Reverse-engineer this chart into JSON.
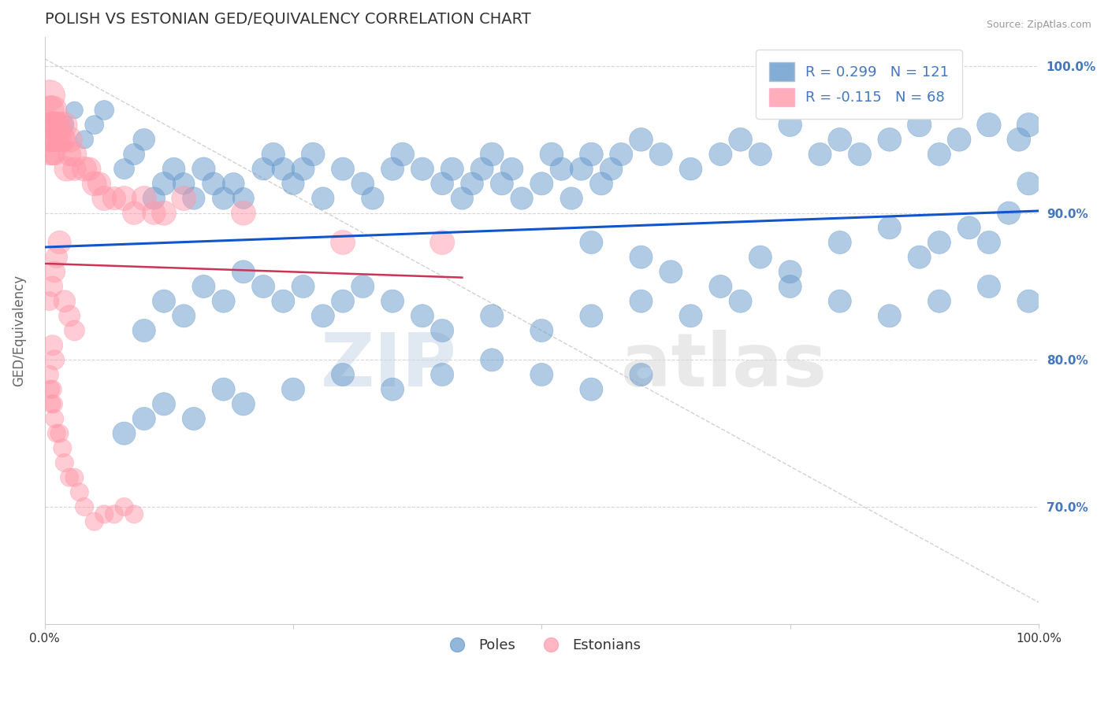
{
  "title": "POLISH VS ESTONIAN GED/EQUIVALENCY CORRELATION CHART",
  "source": "Source: ZipAtlas.com",
  "ylabel": "GED/Equivalency",
  "xlim": [
    0.0,
    1.0
  ],
  "ylim": [
    0.62,
    1.02
  ],
  "yticks": [
    0.7,
    0.8,
    0.9,
    1.0
  ],
  "ytick_labels": [
    "70.0%",
    "80.0%",
    "90.0%",
    "100.0%"
  ],
  "legend_blue_label": "R = 0.299   N = 121",
  "legend_pink_label": "R = -0.115   N = 68",
  "legend_poles": "Poles",
  "legend_estonians": "Estonians",
  "blue_color": "#6699CC",
  "pink_color": "#FF99AA",
  "trend_blue": "#1155CC",
  "trend_pink": "#CC3355",
  "blue_scatter_x": [
    0.02,
    0.03,
    0.04,
    0.05,
    0.06,
    0.08,
    0.09,
    0.1,
    0.11,
    0.12,
    0.13,
    0.14,
    0.15,
    0.16,
    0.17,
    0.18,
    0.19,
    0.2,
    0.22,
    0.23,
    0.24,
    0.25,
    0.26,
    0.27,
    0.28,
    0.3,
    0.32,
    0.33,
    0.35,
    0.36,
    0.38,
    0.4,
    0.41,
    0.42,
    0.43,
    0.44,
    0.45,
    0.46,
    0.47,
    0.48,
    0.5,
    0.51,
    0.52,
    0.53,
    0.54,
    0.55,
    0.56,
    0.57,
    0.58,
    0.6,
    0.62,
    0.65,
    0.68,
    0.7,
    0.72,
    0.75,
    0.78,
    0.8,
    0.82,
    0.85,
    0.88,
    0.9,
    0.92,
    0.95,
    0.98,
    0.99,
    0.55,
    0.6,
    0.63,
    0.68,
    0.72,
    0.75,
    0.8,
    0.85,
    0.88,
    0.9,
    0.93,
    0.95,
    0.97,
    0.99,
    0.1,
    0.12,
    0.14,
    0.16,
    0.18,
    0.2,
    0.22,
    0.24,
    0.26,
    0.28,
    0.3,
    0.32,
    0.35,
    0.38,
    0.4,
    0.45,
    0.5,
    0.55,
    0.6,
    0.65,
    0.7,
    0.75,
    0.8,
    0.85,
    0.9,
    0.95,
    0.99,
    0.08,
    0.1,
    0.12,
    0.15,
    0.18,
    0.2,
    0.25,
    0.3,
    0.35,
    0.4,
    0.45,
    0.5,
    0.55,
    0.6
  ],
  "blue_scatter_y": [
    0.96,
    0.97,
    0.95,
    0.96,
    0.97,
    0.93,
    0.94,
    0.95,
    0.91,
    0.92,
    0.93,
    0.92,
    0.91,
    0.93,
    0.92,
    0.91,
    0.92,
    0.91,
    0.93,
    0.94,
    0.93,
    0.92,
    0.93,
    0.94,
    0.91,
    0.93,
    0.92,
    0.91,
    0.93,
    0.94,
    0.93,
    0.92,
    0.93,
    0.91,
    0.92,
    0.93,
    0.94,
    0.92,
    0.93,
    0.91,
    0.92,
    0.94,
    0.93,
    0.91,
    0.93,
    0.94,
    0.92,
    0.93,
    0.94,
    0.95,
    0.94,
    0.93,
    0.94,
    0.95,
    0.94,
    0.96,
    0.94,
    0.95,
    0.94,
    0.95,
    0.96,
    0.94,
    0.95,
    0.96,
    0.95,
    0.96,
    0.88,
    0.87,
    0.86,
    0.85,
    0.87,
    0.86,
    0.88,
    0.89,
    0.87,
    0.88,
    0.89,
    0.88,
    0.9,
    0.92,
    0.82,
    0.84,
    0.83,
    0.85,
    0.84,
    0.86,
    0.85,
    0.84,
    0.85,
    0.83,
    0.84,
    0.85,
    0.84,
    0.83,
    0.82,
    0.83,
    0.82,
    0.83,
    0.84,
    0.83,
    0.84,
    0.85,
    0.84,
    0.83,
    0.84,
    0.85,
    0.84,
    0.75,
    0.76,
    0.77,
    0.76,
    0.78,
    0.77,
    0.78,
    0.79,
    0.78,
    0.79,
    0.8,
    0.79,
    0.78,
    0.79
  ],
  "blue_scatter_s": [
    30,
    25,
    28,
    30,
    32,
    35,
    38,
    40,
    42,
    45,
    43,
    40,
    42,
    45,
    43,
    42,
    40,
    38,
    42,
    45,
    43,
    42,
    44,
    46,
    42,
    44,
    43,
    42,
    44,
    46,
    44,
    43,
    44,
    42,
    43,
    44,
    46,
    44,
    43,
    42,
    44,
    46,
    44,
    42,
    44,
    46,
    44,
    43,
    44,
    46,
    44,
    43,
    44,
    46,
    44,
    46,
    44,
    46,
    44,
    46,
    48,
    44,
    46,
    48,
    46,
    48,
    44,
    44,
    44,
    44,
    44,
    44,
    44,
    44,
    44,
    44,
    44,
    44,
    44,
    44,
    44,
    44,
    44,
    44,
    44,
    44,
    44,
    44,
    44,
    44,
    44,
    44,
    44,
    44,
    44,
    44,
    44,
    44,
    44,
    44,
    44,
    44,
    44,
    44,
    44,
    44,
    44,
    44,
    44,
    44,
    44,
    44,
    44,
    44,
    44,
    44,
    44,
    44,
    44,
    44,
    44
  ],
  "pink_scatter_x": [
    0.005,
    0.005,
    0.005,
    0.005,
    0.005,
    0.008,
    0.008,
    0.008,
    0.008,
    0.01,
    0.01,
    0.01,
    0.012,
    0.012,
    0.015,
    0.015,
    0.018,
    0.02,
    0.02,
    0.022,
    0.025,
    0.025,
    0.03,
    0.03,
    0.04,
    0.045,
    0.05,
    0.055,
    0.06,
    0.07,
    0.08,
    0.09,
    0.1,
    0.11,
    0.12,
    0.14,
    0.2,
    0.3,
    0.4,
    0.015,
    0.012,
    0.01,
    0.008,
    0.005,
    0.02,
    0.025,
    0.03,
    0.008,
    0.01,
    0.005,
    0.006,
    0.007,
    0.008,
    0.009,
    0.01,
    0.012,
    0.015,
    0.018,
    0.02,
    0.025,
    0.03,
    0.035,
    0.04,
    0.05,
    0.06,
    0.07,
    0.08,
    0.09
  ],
  "pink_scatter_y": [
    0.98,
    0.97,
    0.96,
    0.95,
    0.94,
    0.97,
    0.96,
    0.95,
    0.94,
    0.96,
    0.95,
    0.94,
    0.96,
    0.95,
    0.96,
    0.95,
    0.95,
    0.96,
    0.95,
    0.93,
    0.95,
    0.94,
    0.94,
    0.93,
    0.93,
    0.93,
    0.92,
    0.92,
    0.91,
    0.91,
    0.91,
    0.9,
    0.91,
    0.9,
    0.9,
    0.91,
    0.9,
    0.88,
    0.88,
    0.88,
    0.87,
    0.86,
    0.85,
    0.84,
    0.84,
    0.83,
    0.82,
    0.81,
    0.8,
    0.79,
    0.78,
    0.77,
    0.78,
    0.77,
    0.76,
    0.75,
    0.75,
    0.74,
    0.73,
    0.72,
    0.72,
    0.71,
    0.7,
    0.69,
    0.695,
    0.695,
    0.7,
    0.695
  ],
  "pink_scatter_s": [
    80,
    70,
    60,
    50,
    40,
    70,
    60,
    50,
    40,
    60,
    50,
    40,
    55,
    45,
    55,
    45,
    50,
    55,
    45,
    50,
    55,
    45,
    50,
    45,
    50,
    45,
    50,
    45,
    50,
    45,
    50,
    45,
    50,
    45,
    50,
    50,
    50,
    50,
    50,
    45,
    40,
    38,
    35,
    30,
    40,
    38,
    35,
    35,
    33,
    28,
    28,
    28,
    28,
    28,
    28,
    28,
    28,
    28,
    28,
    28,
    28,
    28,
    28,
    28,
    28,
    28,
    28,
    28
  ],
  "watermark_zip": "ZIP",
  "watermark_atlas": "atlas",
  "background_color": "#FFFFFF",
  "grid_color": "#CCCCCC",
  "title_color": "#333333",
  "axis_label_color": "#666666",
  "right_axis_color": "#4477BB"
}
